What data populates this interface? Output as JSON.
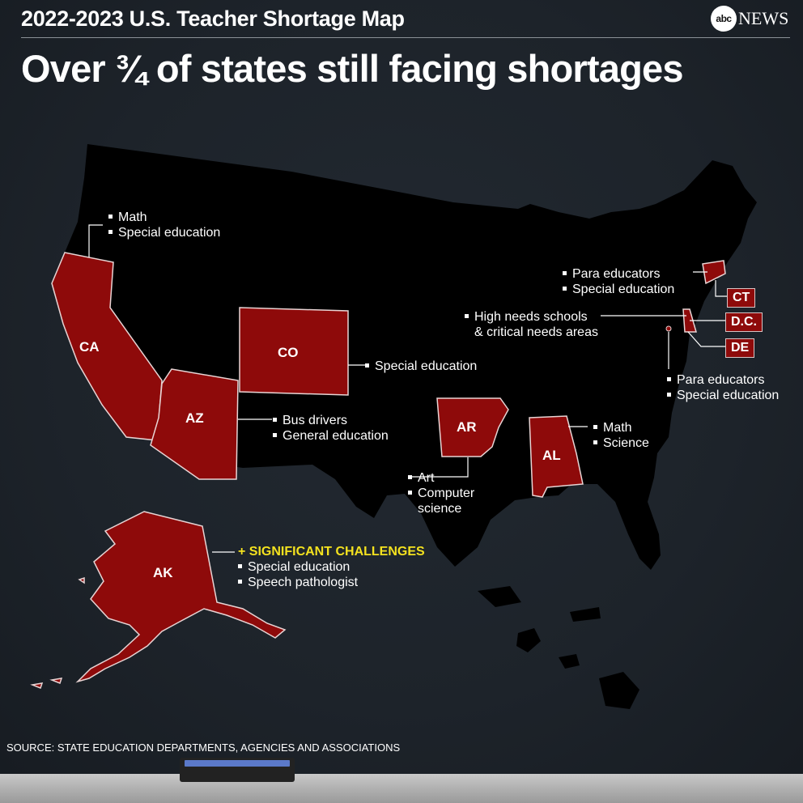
{
  "header": {
    "kicker": "2022-2023 U.S. Teacher Shortage Map",
    "headline": "Over ¾ of states still facing shortages",
    "logo_mark": "abc",
    "logo_word": "NEWS"
  },
  "colors": {
    "highlight_state": "#8e0a0a",
    "other_states": "#000000",
    "background": "#1d232a",
    "accent_text": "#f4e21f"
  },
  "states": {
    "CA": {
      "label": "CA",
      "shortages": [
        "Math",
        "Special education"
      ]
    },
    "CO": {
      "label": "CO",
      "shortages": [
        "Special education"
      ]
    },
    "AZ": {
      "label": "AZ",
      "shortages": [
        "Bus drivers",
        "General education"
      ]
    },
    "AR": {
      "label": "AR",
      "shortages": [
        "Art",
        "Computer",
        "science"
      ]
    },
    "AL": {
      "label": "AL",
      "shortages": [
        "Math",
        "Science"
      ]
    },
    "CT": {
      "label": "CT",
      "shortages": [
        "Para educators",
        "Special education"
      ]
    },
    "DC": {
      "label": "D.C.",
      "shortages": [
        "High needs schools",
        "& critical needs areas"
      ]
    },
    "DE": {
      "label": "DE",
      "shortages": [
        "Para educators",
        "Special education"
      ]
    },
    "AK": {
      "label": "AK",
      "note": "+ SIGNIFICANT CHALLENGES",
      "shortages": [
        "Special education",
        "Speech pathologist"
      ]
    }
  },
  "source": "SOURCE: STATE EDUCATION DEPARTMENTS, AGENCIES AND ASSOCIATIONS"
}
